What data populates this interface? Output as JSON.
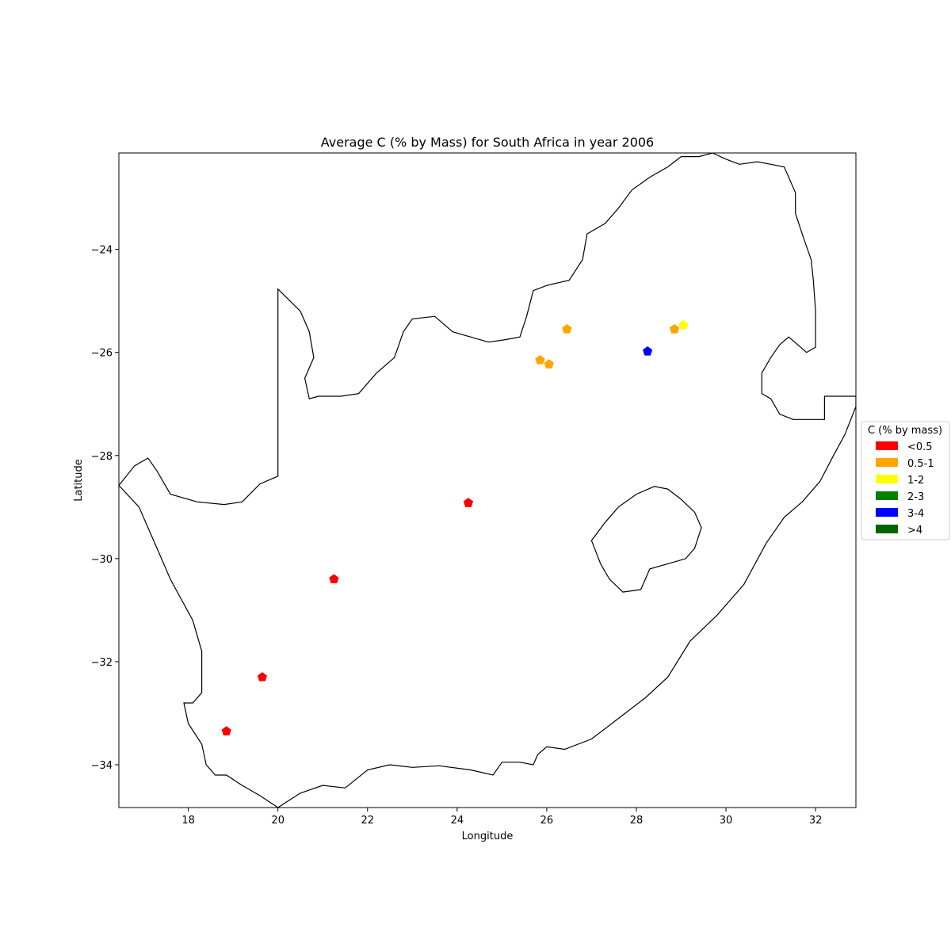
{
  "chart_data": {
    "type": "scatter",
    "title": "Average C (% by Mass) for South Africa in year 2006",
    "xlabel": "Longitude",
    "ylabel": "Latitude",
    "xlim": [
      16.45,
      32.9
    ],
    "ylim": [
      -34.83,
      -22.13
    ],
    "xticks": [
      18,
      20,
      22,
      24,
      26,
      28,
      30,
      32
    ],
    "yticks": [
      -24,
      -26,
      -28,
      -30,
      -32,
      -34
    ],
    "grid": false,
    "legend": {
      "title": "C (% by mass)",
      "placement": "right",
      "entries": [
        {
          "label": "<0.5",
          "color": "#ff0000"
        },
        {
          "label": "0.5-1",
          "color": "#ffa500"
        },
        {
          "label": "1-2",
          "color": "#ffff00"
        },
        {
          "label": "2-3",
          "color": "#008000"
        },
        {
          "label": "3-4",
          "color": "#0000ff"
        },
        {
          "label": ">4",
          "color": "#006400"
        }
      ]
    },
    "points": [
      {
        "lon": 18.85,
        "lat": -33.35,
        "class": "<0.5"
      },
      {
        "lon": 19.65,
        "lat": -32.3,
        "class": "<0.5"
      },
      {
        "lon": 21.25,
        "lat": -30.4,
        "class": "<0.5"
      },
      {
        "lon": 24.25,
        "lat": -28.92,
        "class": "<0.5"
      },
      {
        "lon": 26.45,
        "lat": -25.55,
        "class": "0.5-1"
      },
      {
        "lon": 25.85,
        "lat": -26.15,
        "class": "0.5-1"
      },
      {
        "lon": 26.05,
        "lat": -26.23,
        "class": "0.5-1"
      },
      {
        "lon": 28.85,
        "lat": -25.55,
        "class": "0.5-1"
      },
      {
        "lon": 29.05,
        "lat": -25.47,
        "class": "1-2"
      },
      {
        "lon": 28.25,
        "lat": -25.98,
        "class": "3-4"
      }
    ]
  },
  "map": {
    "country_outline": [
      [
        16.45,
        -28.58
      ],
      [
        16.9,
        -29.0
      ],
      [
        17.2,
        -29.6
      ],
      [
        17.6,
        -30.4
      ],
      [
        18.1,
        -31.2
      ],
      [
        18.3,
        -31.8
      ],
      [
        18.3,
        -32.6
      ],
      [
        18.1,
        -32.8
      ],
      [
        17.9,
        -32.8
      ],
      [
        18.0,
        -33.2
      ],
      [
        18.3,
        -33.6
      ],
      [
        18.4,
        -34.0
      ],
      [
        18.6,
        -34.2
      ],
      [
        18.85,
        -34.2
      ],
      [
        19.2,
        -34.4
      ],
      [
        19.6,
        -34.6
      ],
      [
        20.0,
        -34.83
      ],
      [
        20.5,
        -34.55
      ],
      [
        21.0,
        -34.4
      ],
      [
        21.5,
        -34.45
      ],
      [
        22.0,
        -34.1
      ],
      [
        22.5,
        -34.0
      ],
      [
        23.0,
        -34.05
      ],
      [
        23.6,
        -34.02
      ],
      [
        24.3,
        -34.1
      ],
      [
        24.8,
        -34.2
      ],
      [
        25.0,
        -33.95
      ],
      [
        25.4,
        -33.95
      ],
      [
        25.7,
        -34.0
      ],
      [
        25.8,
        -33.8
      ],
      [
        26.0,
        -33.65
      ],
      [
        26.4,
        -33.7
      ],
      [
        27.0,
        -33.5
      ],
      [
        27.6,
        -33.1
      ],
      [
        28.2,
        -32.7
      ],
      [
        28.7,
        -32.3
      ],
      [
        29.2,
        -31.6
      ],
      [
        29.8,
        -31.1
      ],
      [
        30.4,
        -30.5
      ],
      [
        30.9,
        -29.7
      ],
      [
        31.3,
        -29.2
      ],
      [
        31.7,
        -28.9
      ],
      [
        32.1,
        -28.5
      ],
      [
        32.4,
        -28.0
      ],
      [
        32.65,
        -27.6
      ],
      [
        32.9,
        -27.05
      ],
      [
        32.9,
        -26.85
      ],
      [
        32.5,
        -26.85
      ],
      [
        32.2,
        -26.85
      ],
      [
        32.2,
        -27.3
      ],
      [
        31.9,
        -27.3
      ],
      [
        31.5,
        -27.3
      ],
      [
        31.2,
        -27.2
      ],
      [
        31.0,
        -26.9
      ],
      [
        30.8,
        -26.8
      ],
      [
        30.8,
        -26.4
      ],
      [
        31.0,
        -26.1
      ],
      [
        31.2,
        -25.85
      ],
      [
        31.4,
        -25.7
      ],
      [
        31.8,
        -26.0
      ],
      [
        32.0,
        -25.9
      ],
      [
        32.0,
        -25.2
      ],
      [
        31.95,
        -24.6
      ],
      [
        31.9,
        -24.2
      ],
      [
        31.7,
        -23.7
      ],
      [
        31.55,
        -23.3
      ],
      [
        31.55,
        -22.9
      ],
      [
        31.3,
        -22.4
      ],
      [
        31.0,
        -22.35
      ],
      [
        30.7,
        -22.3
      ],
      [
        30.3,
        -22.35
      ],
      [
        30.0,
        -22.25
      ],
      [
        29.7,
        -22.13
      ],
      [
        29.4,
        -22.2
      ],
      [
        29.0,
        -22.2
      ],
      [
        28.7,
        -22.4
      ],
      [
        28.3,
        -22.6
      ],
      [
        27.9,
        -22.85
      ],
      [
        27.6,
        -23.2
      ],
      [
        27.3,
        -23.5
      ],
      [
        26.9,
        -23.7
      ],
      [
        26.8,
        -24.2
      ],
      [
        26.5,
        -24.6
      ],
      [
        26.0,
        -24.7
      ],
      [
        25.7,
        -24.8
      ],
      [
        25.55,
        -25.3
      ],
      [
        25.4,
        -25.7
      ],
      [
        25.1,
        -25.75
      ],
      [
        24.7,
        -25.8
      ],
      [
        24.3,
        -25.7
      ],
      [
        23.9,
        -25.6
      ],
      [
        23.5,
        -25.3
      ],
      [
        23.0,
        -25.35
      ],
      [
        22.8,
        -25.6
      ],
      [
        22.6,
        -26.1
      ],
      [
        22.2,
        -26.4
      ],
      [
        21.8,
        -26.8
      ],
      [
        21.4,
        -26.85
      ],
      [
        20.9,
        -26.85
      ],
      [
        20.7,
        -26.9
      ],
      [
        20.6,
        -26.5
      ],
      [
        20.8,
        -26.1
      ],
      [
        20.7,
        -25.6
      ],
      [
        20.5,
        -25.2
      ],
      [
        20.0,
        -24.77
      ],
      [
        20.0,
        -28.4
      ],
      [
        19.6,
        -28.55
      ],
      [
        19.2,
        -28.9
      ],
      [
        18.8,
        -28.95
      ],
      [
        18.2,
        -28.9
      ],
      [
        17.6,
        -28.75
      ],
      [
        17.3,
        -28.3
      ],
      [
        17.1,
        -28.05
      ],
      [
        16.8,
        -28.2
      ],
      [
        16.45,
        -28.58
      ]
    ],
    "lesotho_outline": [
      [
        27.0,
        -29.65
      ],
      [
        27.3,
        -29.3
      ],
      [
        27.6,
        -29.0
      ],
      [
        28.0,
        -28.75
      ],
      [
        28.4,
        -28.6
      ],
      [
        28.7,
        -28.65
      ],
      [
        29.0,
        -28.85
      ],
      [
        29.3,
        -29.1
      ],
      [
        29.45,
        -29.4
      ],
      [
        29.3,
        -29.8
      ],
      [
        29.1,
        -30.0
      ],
      [
        28.7,
        -30.1
      ],
      [
        28.3,
        -30.2
      ],
      [
        28.1,
        -30.6
      ],
      [
        27.7,
        -30.65
      ],
      [
        27.4,
        -30.4
      ],
      [
        27.2,
        -30.1
      ],
      [
        27.0,
        -29.65
      ]
    ]
  }
}
